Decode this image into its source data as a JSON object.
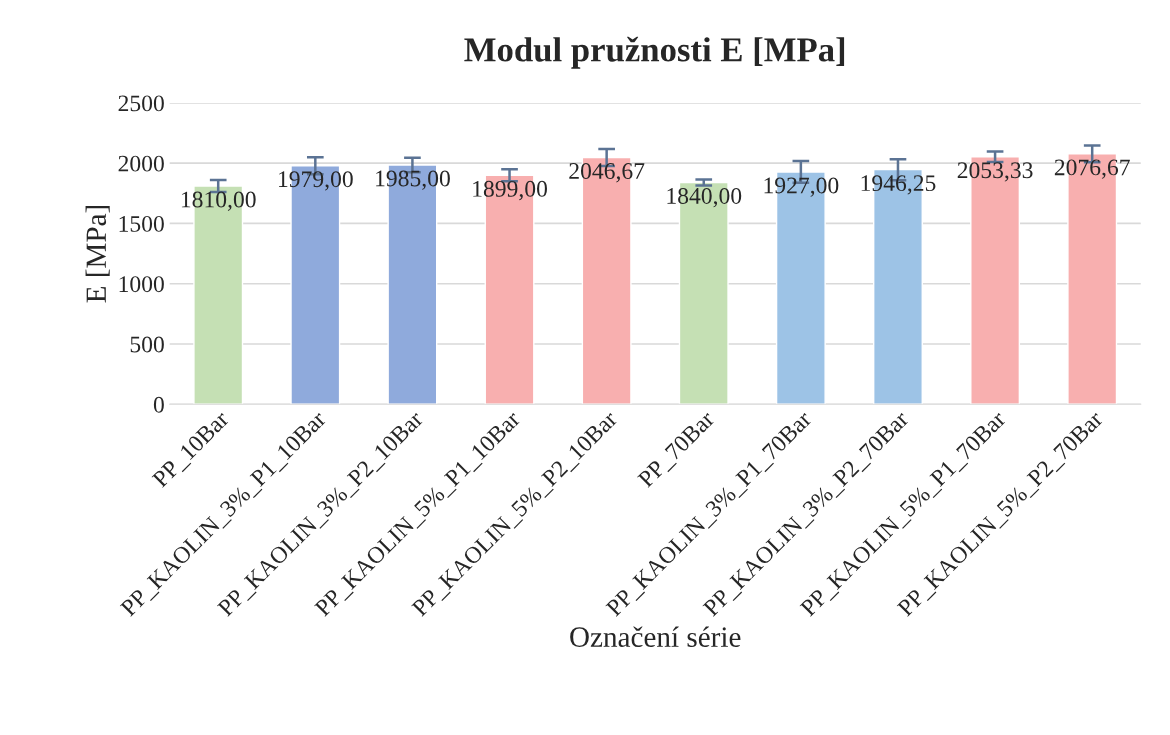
{
  "chart_data": {
    "type": "bar",
    "title": "Modul pružnosti E [MPa]",
    "xlabel": "Označení série",
    "ylabel": "E [MPa]",
    "categories": [
      "PP_10Bar",
      "PP_KAOLIN_3%_P1_10Bar",
      "PP_KAOLIN_3%_P2_10Bar",
      "PP_KAOLIN_5%_P1_10Bar",
      "PP_KAOLIN_5%_P2_10Bar",
      "PP_70Bar",
      "PP_KAOLIN_3%_P1_70Bar",
      "PP_KAOLIN_3%_P2_70Bar",
      "PP_KAOLIN_5%_P1_70Bar",
      "PP_KAOLIN_5%_P2_70Bar"
    ],
    "values": [
      1810.0,
      1979.0,
      1985.0,
      1899.0,
      2046.67,
      1840.0,
      1927.0,
      1946.25,
      2053.33,
      2076.67
    ],
    "colors": [
      "#c5e0b4",
      "#8faadc",
      "#8faadc",
      "#f8afaf",
      "#f8afaf",
      "#c5e0b4",
      "#9dc3e6",
      "#9dc3e6",
      "#f8afaf",
      "#f8afaf"
    ],
    "errors": [
      50,
      70,
      60,
      50,
      70,
      25,
      90,
      87,
      44,
      70
    ],
    "value_labels": [
      "1810,00",
      "1979,00",
      "1985,00",
      "1899,00",
      "2046,67",
      "1840,00",
      "1927,00",
      "1946,25",
      "2053,33",
      "2076,67"
    ],
    "ylim": [
      0,
      2500
    ],
    "yticks": [
      0,
      500,
      1000,
      1500,
      2000,
      2500
    ],
    "grid": "y"
  }
}
